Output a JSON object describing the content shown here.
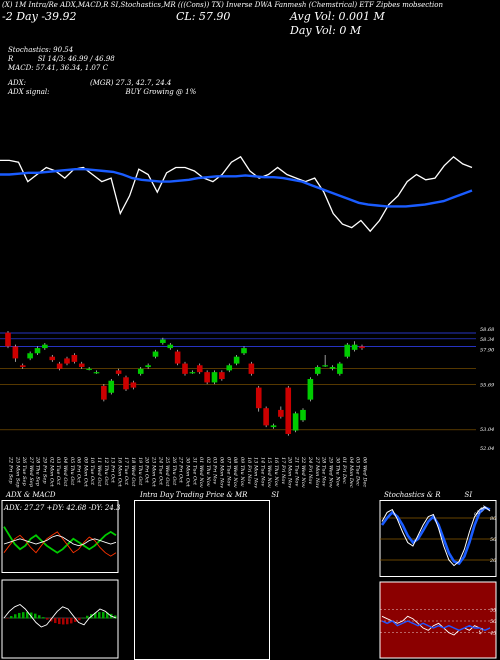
{
  "header": {
    "line1": "(X) 1M Intra/Re    ADX,MACD,R       SI,Stochastics,MR          (((Cons)) TX)          Inverse DWA Fanmesh (Chemstrical) ETF Zipbes mobsection",
    "line2": "(X) 1M Intra/Re    ADX,MACD,R       SI,Stochastics,MR",
    "day_label": "-2  Day",
    "day_value": "-39.92",
    "cl": "CL: 57.90",
    "avg_vol": "Avg Vol: 0.001  M",
    "day_vol": "Day Vol: 0   M"
  },
  "info": {
    "stoch": "Stochastics: 90.54",
    "si": "SI 14/3: 46.99 / 46.98",
    "r": "R",
    "macd": "MACD: 57.41, 36.34, 1.07 C",
    "adx_label": "ADX:",
    "adx_vals": "(MGR) 27.3, 42.7, 24.4",
    "adx_signal": "ADX  signal:",
    "buy": "BUY Growing @ 1%"
  },
  "price_labels": [
    "58.68",
    "58.34",
    "57.90",
    "55.69",
    "53.04",
    "52.04"
  ],
  "dates": [
    "22 Fri Sep",
    "25 Mon Sep",
    "26 Tue Sep",
    "27 Wed Sep",
    "28 Thu Sep",
    "29 Fri Sep",
    "02 Mon Oct",
    "03 Tue Oct",
    "04 Wed Oct",
    "05 Thu Oct",
    "06 Fri Oct",
    "09 Mon Oct",
    "10 Tue Oct",
    "11 Wed Oct",
    "12 Thu Oct",
    "13 Fri Oct",
    "16 Mon Oct",
    "17 Tue Oct",
    "18 Wed Oct",
    "19 Thu Oct",
    "20 Fri Oct",
    "23 Mon Oct",
    "24 Tue Oct",
    "25 Wed Oct",
    "26 Thu Oct",
    "27 Fri Oct",
    "30 Mon Oct",
    "31 Tue Oct",
    "01 Wed Nov",
    "02 Thu Nov",
    "03 Fri Nov",
    "06 Mon Nov",
    "07 Tue Nov",
    "08 Wed Nov",
    "09 Thu Nov",
    "10 Fri Nov",
    "13 Mon Nov",
    "14 Tue Nov",
    "15 Wed Nov",
    "16 Thu Nov",
    "17 Fri Nov",
    "20 Mon Nov",
    "21 Tue Nov",
    "22 Wed Nov",
    "24 Fri Nov",
    "27 Mon Nov",
    "28 Tue Nov",
    "29 Wed Nov",
    "30 Thu Nov",
    "01 Fri Dec",
    "04 Mon Dec",
    "05 Tue Dec",
    "06 Wed Dec"
  ],
  "panels": {
    "adx_title": "ADX  & MACD",
    "adx_readout": "ADX: 27.27  +DY: 42.68  -DY: 24.39",
    "intra_title": "Intra  Day Trading Price  & MR",
    "intra_si": "SI",
    "stoch_title": "Stochastics & R",
    "stoch_si": "SI",
    "stoch_level_labels": [
      "80",
      "50",
      "20"
    ],
    "stoch_current": "90.54",
    "rsi_level_labels": [
      "55",
      "50",
      "45"
    ],
    "rsi_current": "47"
  },
  "chart_data": [
    {
      "type": "line",
      "note_series": "upper overview: price line (white) and moving average (blue)",
      "series": [
        {
          "color": "#ffffff",
          "values": [
            58,
            58,
            57.9,
            56.8,
            57.2,
            57.6,
            57.4,
            57.0,
            57.5,
            57.6,
            57.2,
            56.8,
            57.0,
            55.0,
            56.0,
            57.5,
            57.2,
            56.2,
            57.3,
            57.6,
            57.6,
            57.4,
            57.0,
            56.8,
            57.2,
            57.9,
            58.2,
            57.4,
            57.0,
            57.2,
            57.6,
            57.2,
            57.0,
            56.8,
            57.0,
            56.2,
            55.0,
            54.4,
            54.2,
            54.6,
            54.0,
            54.6,
            55.5,
            56.0,
            56.8,
            57.2,
            56.9,
            57.0,
            57.7,
            58.2,
            57.8,
            57.6
          ]
        },
        {
          "color": "#1a5cff",
          "values": [
            57.2,
            57.2,
            57.25,
            57.3,
            57.3,
            57.35,
            57.4,
            57.45,
            57.5,
            57.5,
            57.45,
            57.4,
            57.35,
            57.2,
            57.0,
            56.9,
            56.85,
            56.8,
            56.8,
            56.85,
            56.9,
            57.0,
            57.05,
            57.1,
            57.1,
            57.1,
            57.15,
            57.1,
            57.05,
            57.05,
            57.0,
            56.9,
            56.8,
            56.6,
            56.4,
            56.2,
            56.0,
            55.8,
            55.6,
            55.5,
            55.45,
            55.4,
            55.4,
            55.4,
            55.45,
            55.5,
            55.6,
            55.7,
            55.9,
            56.1,
            56.3
          ]
        }
      ]
    },
    {
      "type": "candlestick",
      "ylim": [
        52.04,
        58.68
      ],
      "up_color": "#00cc00",
      "down_color": "#cc0000",
      "candles": [
        {
          "o": 58.7,
          "c": 57.9,
          "h": 58.8,
          "l": 57.8
        },
        {
          "o": 57.9,
          "c": 57.2,
          "h": 58.0,
          "l": 57.0
        },
        {
          "o": 56.8,
          "c": 56.7,
          "h": 56.9,
          "l": 56.6
        },
        {
          "o": 57.2,
          "c": 57.5,
          "h": 57.6,
          "l": 57.1
        },
        {
          "o": 57.5,
          "c": 57.8,
          "h": 57.9,
          "l": 57.4
        },
        {
          "o": 57.8,
          "c": 58.0,
          "h": 58.1,
          "l": 57.7
        },
        {
          "o": 57.3,
          "c": 57.1,
          "h": 57.4,
          "l": 57.0
        },
        {
          "o": 56.9,
          "c": 56.6,
          "h": 57.0,
          "l": 56.5
        },
        {
          "o": 57.2,
          "c": 56.9,
          "h": 57.3,
          "l": 56.8
        },
        {
          "o": 57.4,
          "c": 57.0,
          "h": 57.5,
          "l": 56.9
        },
        {
          "o": 56.9,
          "c": 56.7,
          "h": 57.0,
          "l": 56.6
        },
        {
          "o": 56.6,
          "c": 56.6,
          "h": 56.7,
          "l": 56.5
        },
        {
          "o": 56.4,
          "c": 56.4,
          "h": 56.5,
          "l": 56.3
        },
        {
          "o": 55.6,
          "c": 54.8,
          "h": 55.7,
          "l": 54.7
        },
        {
          "o": 55.2,
          "c": 55.9,
          "h": 56.0,
          "l": 55.1
        },
        {
          "o": 56.5,
          "c": 56.3,
          "h": 56.6,
          "l": 56.2
        },
        {
          "o": 56.1,
          "c": 55.4,
          "h": 56.2,
          "l": 55.3
        },
        {
          "o": 55.8,
          "c": 55.5,
          "h": 55.9,
          "l": 55.4
        },
        {
          "o": 56.3,
          "c": 56.6,
          "h": 56.7,
          "l": 56.2
        },
        {
          "o": 56.7,
          "c": 56.8,
          "h": 56.9,
          "l": 56.6
        },
        {
          "o": 57.3,
          "c": 57.6,
          "h": 57.7,
          "l": 57.2
        },
        {
          "o": 58.1,
          "c": 58.3,
          "h": 58.4,
          "l": 58.0
        },
        {
          "o": 57.8,
          "c": 58.0,
          "h": 58.1,
          "l": 57.7
        },
        {
          "o": 57.6,
          "c": 56.9,
          "h": 57.7,
          "l": 56.8
        },
        {
          "o": 56.9,
          "c": 56.3,
          "h": 57.0,
          "l": 56.2
        },
        {
          "o": 56.4,
          "c": 56.4,
          "h": 56.5,
          "l": 56.3
        },
        {
          "o": 56.8,
          "c": 56.4,
          "h": 56.9,
          "l": 56.3
        },
        {
          "o": 56.4,
          "c": 55.8,
          "h": 56.5,
          "l": 55.7
        },
        {
          "o": 55.8,
          "c": 56.4,
          "h": 56.5,
          "l": 55.7
        },
        {
          "o": 56.4,
          "c": 56.0,
          "h": 56.5,
          "l": 55.9
        },
        {
          "o": 56.5,
          "c": 56.8,
          "h": 56.9,
          "l": 56.4
        },
        {
          "o": 56.9,
          "c": 57.3,
          "h": 57.4,
          "l": 56.8
        },
        {
          "o": 57.5,
          "c": 57.8,
          "h": 57.9,
          "l": 57.4
        },
        {
          "o": 56.9,
          "c": 56.3,
          "h": 57.0,
          "l": 56.2
        },
        {
          "o": 55.5,
          "c": 54.3,
          "h": 55.6,
          "l": 54.1
        },
        {
          "o": 54.3,
          "c": 53.3,
          "h": 54.4,
          "l": 53.2
        },
        {
          "o": 53.2,
          "c": 53.3,
          "h": 53.4,
          "l": 53.1
        },
        {
          "o": 54.2,
          "c": 53.8,
          "h": 54.4,
          "l": 53.7
        },
        {
          "o": 55.5,
          "c": 52.8,
          "h": 55.6,
          "l": 52.7
        },
        {
          "o": 53.0,
          "c": 54.0,
          "h": 54.1,
          "l": 52.9
        },
        {
          "o": 53.6,
          "c": 54.2,
          "h": 54.3,
          "l": 53.5
        },
        {
          "o": 54.8,
          "c": 56.0,
          "h": 56.1,
          "l": 54.7
        },
        {
          "o": 56.3,
          "c": 56.7,
          "h": 56.8,
          "l": 56.2
        },
        {
          "o": 56.8,
          "c": 56.8,
          "h": 57.4,
          "l": 56.7
        },
        {
          "o": 56.6,
          "c": 56.7,
          "h": 56.8,
          "l": 56.5
        },
        {
          "o": 56.3,
          "c": 56.9,
          "h": 57.0,
          "l": 56.2
        },
        {
          "o": 57.3,
          "c": 58.0,
          "h": 58.1,
          "l": 57.2
        },
        {
          "o": 57.7,
          "c": 58.0,
          "h": 58.2,
          "l": 57.6
        },
        {
          "o": 57.9,
          "c": 57.8,
          "h": 58.0,
          "l": 57.7
        }
      ]
    },
    {
      "type": "line",
      "note_series": "ADX & MACD panel",
      "series": [
        {
          "color": "#00cc00",
          "values": [
            35,
            30,
            25,
            22,
            24,
            28,
            30,
            27,
            24,
            22,
            20,
            22,
            25,
            28,
            26,
            24,
            22,
            24,
            27,
            30,
            32,
            30
          ]
        },
        {
          "color": "#ff3300",
          "values": [
            20,
            24,
            28,
            30,
            27,
            23,
            20,
            24,
            28,
            30,
            32,
            28,
            24,
            20,
            22,
            26,
            29,
            27,
            23,
            20,
            18,
            20
          ]
        },
        {
          "color": "#ffffff",
          "values": [
            25,
            26,
            27,
            28,
            27,
            26,
            25,
            26,
            27,
            29,
            30,
            29,
            27,
            25,
            24,
            25,
            27,
            28,
            27,
            26,
            25,
            26
          ]
        }
      ]
    },
    {
      "type": "line",
      "note_series": "Stochastics panel",
      "levels": [
        80,
        50,
        20
      ],
      "series": [
        {
          "color": "#1a5cff",
          "values": [
            70,
            80,
            88,
            82,
            70,
            55,
            45,
            50,
            62,
            75,
            82,
            70,
            50,
            30,
            18,
            15,
            25,
            45,
            70,
            88,
            95,
            92
          ]
        },
        {
          "color": "#ffffff",
          "values": [
            75,
            88,
            92,
            78,
            60,
            45,
            40,
            55,
            70,
            82,
            85,
            65,
            40,
            20,
            12,
            18,
            35,
            60,
            82,
            92,
            96,
            90
          ]
        }
      ]
    },
    {
      "type": "line",
      "note_series": "RSI panel",
      "levels": [
        55,
        50,
        45
      ],
      "series": [
        {
          "color": "#ffffff",
          "values": [
            52,
            51,
            50,
            49,
            50,
            52,
            51,
            49,
            47,
            46,
            48,
            49,
            47,
            45,
            44,
            46,
            47,
            46,
            48,
            47,
            46,
            47
          ]
        }
      ]
    }
  ]
}
